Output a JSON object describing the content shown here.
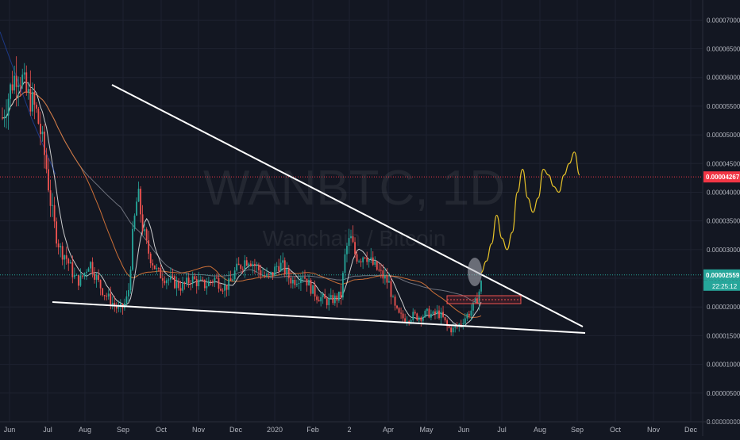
{
  "chart_data": {
    "type": "candlestick",
    "watermark": {
      "symbol": "WANBTC, 1D",
      "name": "Wanchain / Bitcoin"
    },
    "x_axis_labels": [
      "Jun",
      "Jul",
      "Aug",
      "Sep",
      "Oct",
      "Nov",
      "Dec",
      "2020",
      "Feb",
      "2",
      "Apr",
      "May",
      "Jun",
      "Jul",
      "Aug",
      "Sep",
      "Oct",
      "Nov",
      "Dec"
    ],
    "y_axis": {
      "ticks": [
        "0.00007000",
        "0.00006500",
        "0.00006000",
        "0.00005500",
        "0.00005000",
        "0.00004500",
        "0.00004000",
        "0.00003500",
        "0.00003000",
        "0.00002500",
        "0.00002000",
        "0.00001500",
        "0.00001000",
        "0.00000500",
        "0.00000000"
      ],
      "ylim": [
        0,
        7.35e-05
      ]
    },
    "price_markers": {
      "resistance_price": "0.00004267",
      "last_price": "0.00002559",
      "countdown": "22:25:12"
    },
    "colors": {
      "background": "#131722",
      "grid": "#1e2230",
      "axis_text": "#b2b5be",
      "up_candle": "#26a69a",
      "down_candle": "#ef5350",
      "resistance_line": "#f23645",
      "last_price": "#26a69a",
      "trendlines": "#ffffff",
      "projection": "#e6c229",
      "sma_white": "#e0e0e0",
      "ema_orange": "#e0793a",
      "ma_grey": "#787b86",
      "ma_blue": "#2962ff"
    },
    "trend": [
      5.3e-05,
      5.6e-05,
      5.9e-05,
      6.1e-05,
      6e-05,
      5.7e-05,
      5.6e-05,
      5.4e-05,
      5e-05,
      4.5e-05,
      3.8e-05,
      3.3e-05,
      3e-05,
      2.9e-05,
      2.7e-05,
      2.5e-05,
      2.45e-05,
      2.6e-05,
      2.8e-05,
      2.6e-05,
      2.4e-05,
      2.25e-05,
      2.15e-05,
      2.05e-05,
      1.95e-05,
      2e-05,
      2.2e-05,
      3.3e-05,
      4e-05,
      3.4e-05,
      3e-05,
      2.8e-05,
      2.6e-05,
      2.55e-05,
      2.5e-05,
      2.45e-05,
      2.4e-05,
      2.35e-05,
      2.4e-05,
      2.5e-05,
      2.45e-05,
      2.4e-05,
      2.38e-05,
      2.45e-05,
      2.5e-05,
      2.4e-05,
      2.35e-05,
      2.4e-05,
      2.6e-05,
      2.7e-05,
      2.8e-05,
      2.85e-05,
      2.75e-05,
      2.65e-05,
      2.55e-05,
      2.5e-05,
      2.6e-05,
      2.75e-05,
      2.7e-05,
      2.55e-05,
      2.45e-05,
      2.5e-05,
      2.6e-05,
      2.45e-05,
      2.3e-05,
      2.2e-05,
      2.15e-05,
      2.1e-05,
      2.12e-05,
      2.15e-05,
      2.2e-05,
      3e-05,
      3.2e-05,
      2.9e-05,
      2.85e-05,
      2.95e-05,
      2.8e-05,
      2.7e-05,
      2.6e-05,
      2.5e-05,
      2.4e-05,
      2e-05,
      1.85e-05,
      1.8e-05,
      1.82e-05,
      1.85e-05,
      1.83e-05,
      1.85e-05,
      1.9e-05,
      1.85e-05,
      1.9e-05,
      1.82e-05,
      1.65e-05,
      1.6e-05,
      1.65e-05,
      1.75e-05,
      1.85e-05,
      1.95e-05,
      2.1e-05,
      2.4e-05
    ],
    "projection": [
      2.6e-05,
      2.8e-05,
      3.1e-05,
      3.6e-05,
      3.2e-05,
      3e-05,
      3.3e-05,
      4e-05,
      4.4e-05,
      3.9e-05,
      3.65e-05,
      3.9e-05,
      4.4e-05,
      4.3e-05,
      4.1e-05,
      4e-05,
      4.3e-05,
      4.5e-05,
      4.7e-05,
      4.3e-05
    ]
  }
}
